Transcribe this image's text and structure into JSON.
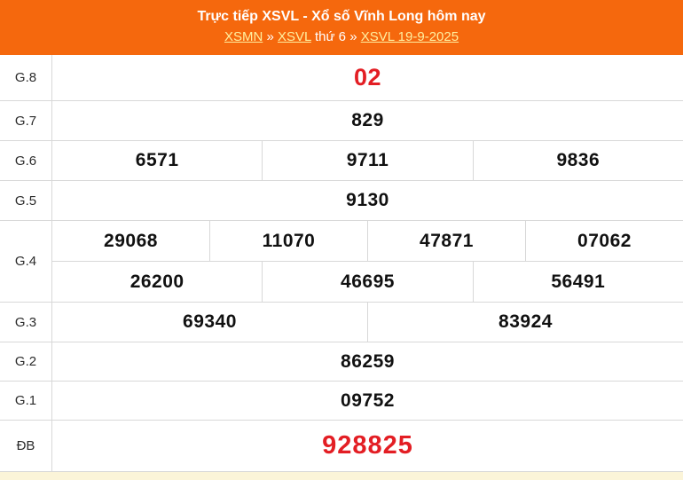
{
  "header": {
    "title": "Trực tiếp XSVL - Xổ số Vĩnh Long hôm nay",
    "breadcrumb": {
      "link_region": "XSMN",
      "sep1": "»",
      "link_province": "XSVL",
      "weekday": "thứ 6",
      "sep2": "»",
      "link_date": "XSVL 19-9-2025"
    }
  },
  "colors": {
    "header_orange": "#F5680D",
    "link_yellow": "#FFF0A0",
    "highlight_red": "#E31E24",
    "border_gray": "#D8D8D8",
    "bottom_strip_cream": "#FBF4D8"
  },
  "table": {
    "rows": [
      {
        "label": "G.8",
        "values": [
          "02"
        ]
      },
      {
        "label": "G.7",
        "values": [
          "829"
        ]
      },
      {
        "label": "G.6",
        "values": [
          "6571",
          "9711",
          "9836"
        ]
      },
      {
        "label": "G.5",
        "values": [
          "9130"
        ]
      },
      {
        "label": "G.4",
        "values_row1": [
          "29068",
          "11070",
          "47871",
          "07062"
        ],
        "values_row2": [
          "26200",
          "46695",
          "56491"
        ]
      },
      {
        "label": "G.3",
        "values": [
          "69340",
          "83924"
        ]
      },
      {
        "label": "G.2",
        "values": [
          "86259"
        ]
      },
      {
        "label": "G.1",
        "values": [
          "09752"
        ]
      },
      {
        "label": "ĐB",
        "values": [
          "928825"
        ]
      }
    ]
  }
}
